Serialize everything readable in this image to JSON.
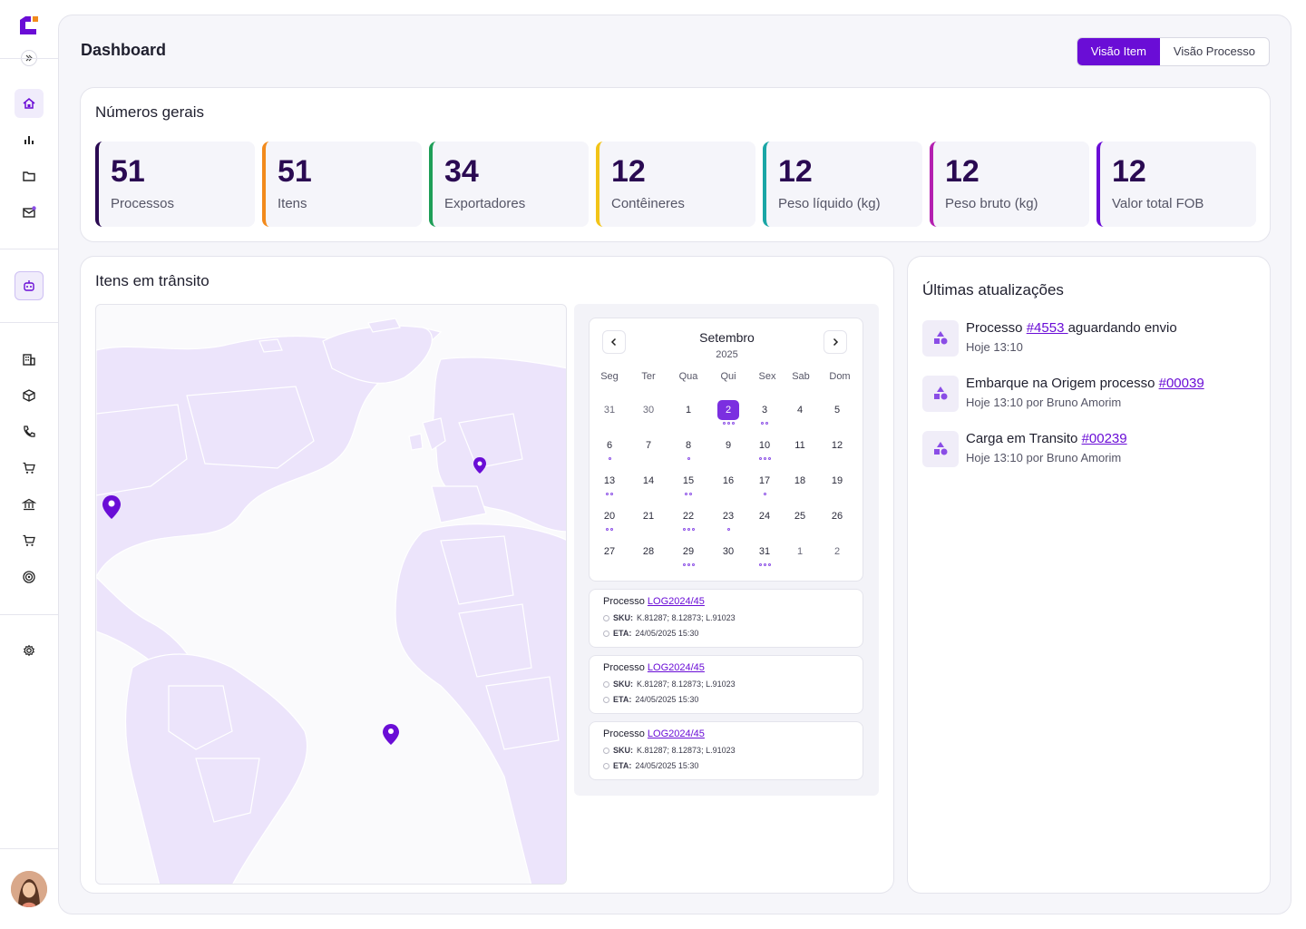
{
  "header": {
    "title": "Dashboard",
    "toggle": [
      "Visão Item",
      "Visão Processo"
    ]
  },
  "colors": {
    "accent": "#6a0dd6",
    "processos": "#2a0a52",
    "itens": "#f28a1c",
    "exportadores": "#1e9e57",
    "conteineres": "#f2c418",
    "peso_liquido": "#1aa6a6",
    "peso_bruto": "#b41fb0",
    "valor_fob": "#6a0dd6"
  },
  "numeros": {
    "title": "Números gerais",
    "stats": [
      {
        "value": "51",
        "label": "Processos"
      },
      {
        "value": "51",
        "label": "Itens"
      },
      {
        "value": "34",
        "label": "Exportadores"
      },
      {
        "value": "12",
        "label": "Contêineres"
      },
      {
        "value": "12",
        "label": "Peso líquido (kg)"
      },
      {
        "value": "12",
        "label": "Peso bruto (kg)"
      },
      {
        "value": "12",
        "label": "Valor total FOB"
      }
    ]
  },
  "transito": {
    "title": "Itens em trânsito",
    "calendar": {
      "month": "Setembro",
      "year": "2025",
      "weekdays": [
        "Seg",
        "Ter",
        "Qua",
        "Qui",
        "Sex",
        "Sab",
        "Dom"
      ],
      "weeks": [
        [
          "31",
          "30",
          "1",
          "2",
          "3",
          "4",
          "5"
        ],
        [
          "6",
          "7",
          "8",
          "9",
          "10",
          "11",
          "12"
        ],
        [
          "13",
          "14",
          "15",
          "16",
          "17",
          "18",
          "19"
        ],
        [
          "20",
          "21",
          "22",
          "23",
          "24",
          "25",
          "26"
        ],
        [
          "27",
          "28",
          "29",
          "30",
          "31",
          "1",
          "2"
        ]
      ],
      "selected": "2"
    },
    "processes": [
      {
        "label": "Processo",
        "code": "LOG2024/45",
        "sku_label": "SKU:",
        "sku": "K.81287; 8.12873; L.91023",
        "eta_label": "ETA:",
        "eta": "24/05/2025 15:30"
      },
      {
        "label": "Processo",
        "code": "LOG2024/45",
        "sku_label": "SKU:",
        "sku": "K.81287; 8.12873; L.91023",
        "eta_label": "ETA:",
        "eta": "24/05/2025 15:30"
      },
      {
        "label": "Processo",
        "code": "LOG2024/45",
        "sku_label": "SKU:",
        "sku": "K.81287; 8.12873; L.91023",
        "eta_label": "ETA:",
        "eta": "24/05/2025 15:30"
      }
    ]
  },
  "updates": {
    "title": "Últimas atualizações",
    "items": [
      {
        "pre": "Processo",
        "link": "#4553 ",
        "post": "aguardando envio",
        "sub": "Hoje 13:10"
      },
      {
        "pre": "Embarque na Origem processo",
        "link": "#00039",
        "post": "",
        "sub": "Hoje 13:10 por Bruno Amorim"
      },
      {
        "pre": "Carga em Transito ",
        "link": "#00239",
        "post": "",
        "sub": "Hoje 13:10 por Bruno Amorim"
      }
    ]
  }
}
